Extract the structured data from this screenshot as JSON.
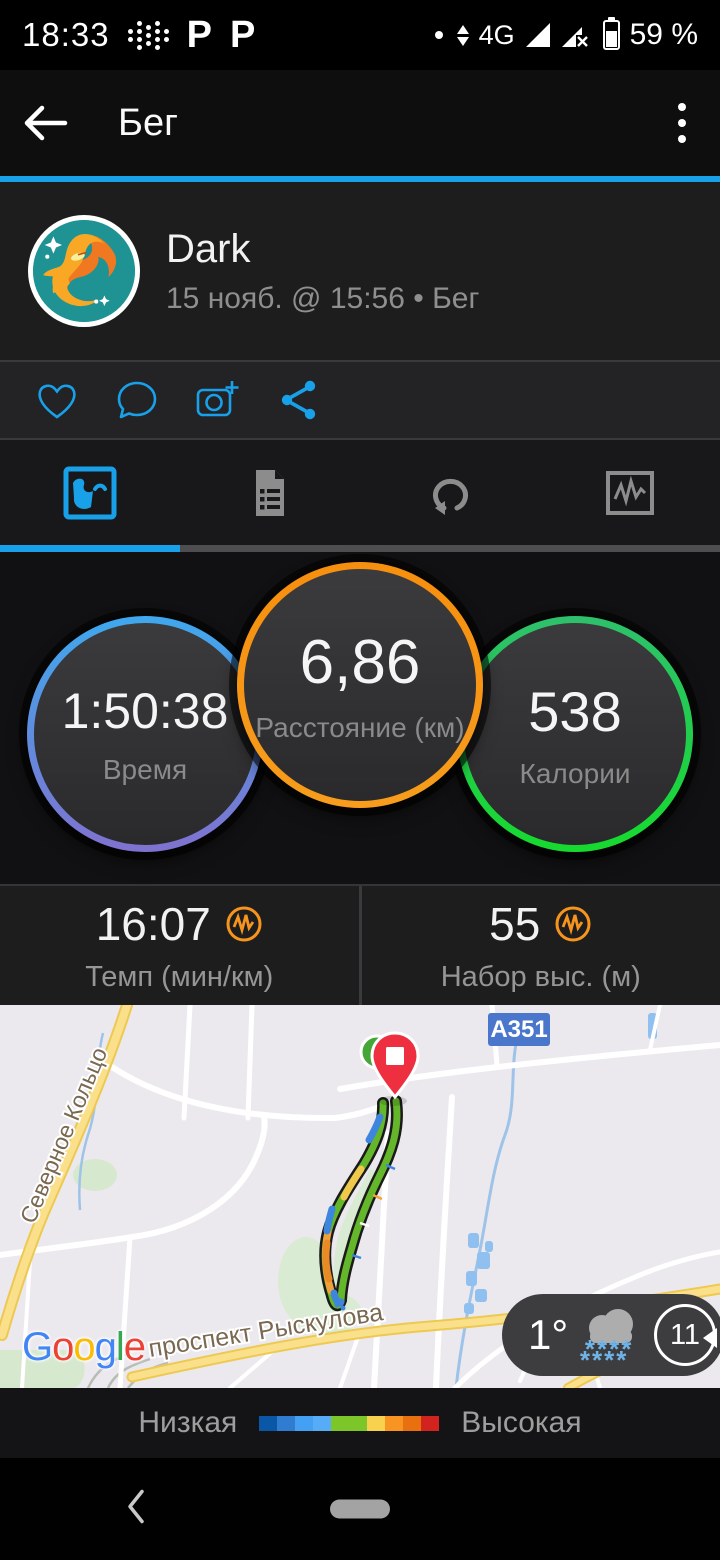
{
  "status_bar": {
    "time": "18:33",
    "app_icon_1": "P",
    "app_icon_2": "P",
    "network": "4G",
    "battery_percent": "59 %"
  },
  "app_bar": {
    "title": "Бег"
  },
  "activity_header": {
    "name": "Dark",
    "meta": "15 нояб. @ 15:56 • Бег"
  },
  "metric_circles": {
    "time": {
      "value": "1:50:38",
      "label": "Время"
    },
    "distance": {
      "value": "6,86",
      "label": "Расстояние (км)"
    },
    "calories": {
      "value": "538",
      "label": "Калории"
    }
  },
  "metric_tiles": {
    "pace": {
      "value": "16:07",
      "label": "Темп (мин/км)"
    },
    "elevation": {
      "value": "55",
      "label": "Набор выс. (м)"
    }
  },
  "map": {
    "road_badge": "А351",
    "street_labels": [
      "Северное Кольцо",
      "проспект Рыскулова"
    ],
    "google_logo": {
      "letters": [
        "G",
        "o",
        "o",
        "g",
        "l",
        "e"
      ],
      "colors": [
        "#4285F4",
        "#EA4335",
        "#FBBC05",
        "#4285F4",
        "#34A853",
        "#EA4335"
      ]
    },
    "weather": {
      "temperature": "1°",
      "wind_speed": "11",
      "snow_row": "****"
    }
  },
  "legend": {
    "low_label": "Низкая",
    "high_label": "Высокая",
    "swatches": [
      "#0a57a8",
      "#2f7cd0",
      "#43a0f2",
      "#57acf7",
      "#7dc62a",
      "#7dc62a",
      "#f8d24e",
      "#f79422",
      "#e8700f",
      "#d2231e"
    ]
  },
  "colors": {
    "accent_blue": "#18a0e8",
    "ring_time_top": "#3fa8ee",
    "ring_time_bottom": "#7f72cf",
    "ring_distance": "#f79416",
    "ring_calories_top": "#2ec06c",
    "ring_calories_bottom": "#16da2e",
    "stat_icon_orange": "#f7941d",
    "route_green": "#64b62b"
  }
}
